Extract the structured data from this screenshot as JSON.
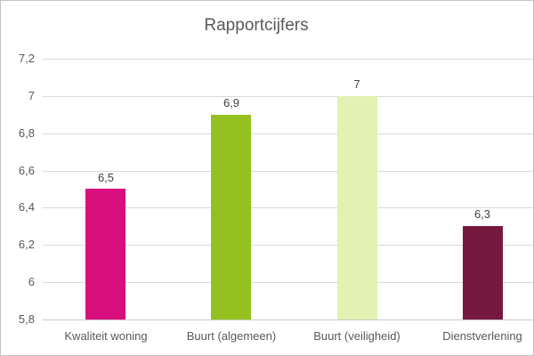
{
  "window": {
    "background": "#ffffff",
    "border_color": "#c3c3c3"
  },
  "chart_data": {
    "type": "bar",
    "title": "Rapportcijfers",
    "title_color": "#595959",
    "categories": [
      "Kwaliteit woning",
      "Buurt (algemeen)",
      "Buurt (veiligheid)",
      "Dienstverlening"
    ],
    "values": [
      6.5,
      6.9,
      7,
      6.3
    ],
    "value_labels": [
      "6,5",
      "6,9",
      "7",
      "6,3"
    ],
    "bar_colors": [
      "#d90f7e",
      "#94c11f",
      "#e3f1b2",
      "#77193f"
    ],
    "ylim": [
      5.8,
      7.2
    ],
    "yticks": [
      {
        "value": 5.8,
        "label": "5,8"
      },
      {
        "value": 6.0,
        "label": "6"
      },
      {
        "value": 6.2,
        "label": "6,2"
      },
      {
        "value": 6.4,
        "label": "6,4"
      },
      {
        "value": 6.6,
        "label": "6,6"
      },
      {
        "value": 6.8,
        "label": "6,8"
      },
      {
        "value": 7.0,
        "label": "7"
      },
      {
        "value": 7.2,
        "label": "7,2"
      }
    ],
    "grid": true,
    "gridline_color": "#d9d9d9",
    "axis_line_color": "#c9c9c9",
    "tick_label_color": "#595959",
    "value_label_color": "#404040",
    "legend": "none",
    "xlabel": "",
    "ylabel": ""
  }
}
